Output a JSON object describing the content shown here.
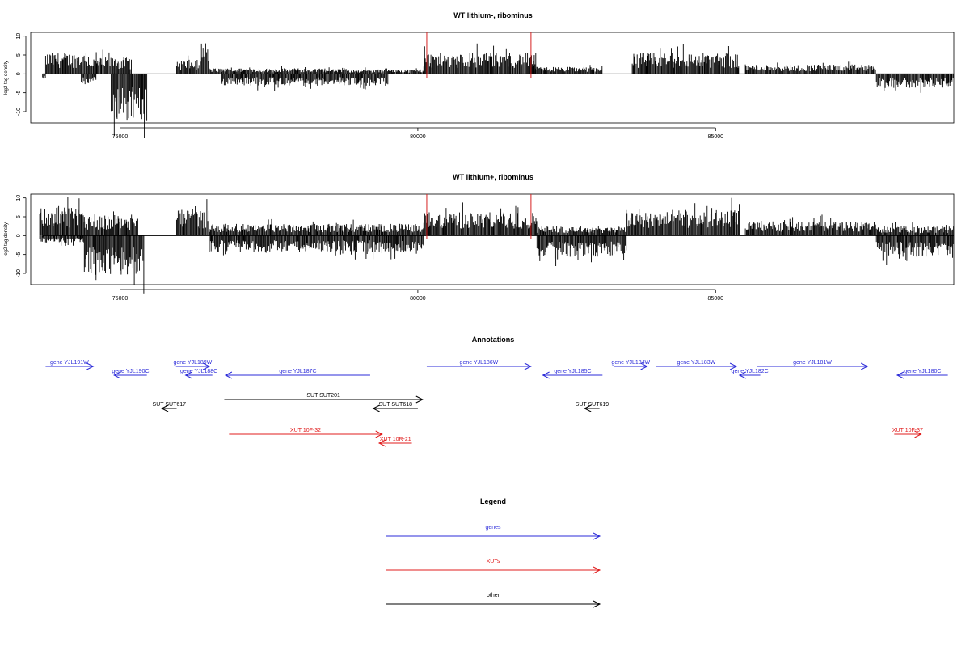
{
  "chart_data": [
    {
      "type": "bar",
      "title": "WT lithium-, ribominus",
      "ylabel": "log2 tag density",
      "xlabel": "",
      "xlim": [
        73500,
        89000
      ],
      "ylim": [
        -13,
        11
      ],
      "x_ticks": [
        75000,
        80000,
        85000
      ],
      "y_ticks": [
        10,
        5,
        0,
        -5,
        -10
      ],
      "grid": false,
      "highlight_positions": [
        80150,
        81900
      ],
      "highlight_color": "#d62020",
      "bar_color": "#000000",
      "regions": [
        {
          "start": 73700,
          "end": 73750,
          "level": -1.0,
          "sign": -1
        },
        {
          "start": 73750,
          "end": 74500,
          "level": 4.5,
          "sign": 1
        },
        {
          "start": 74500,
          "end": 75200,
          "level": 3.5,
          "sign": 1
        },
        {
          "start": 74350,
          "end": 74600,
          "level": -2.0,
          "sign": -1
        },
        {
          "start": 74850,
          "end": 75450,
          "level": -10.0,
          "sign": -1
        },
        {
          "start": 75950,
          "end": 76350,
          "level": 3.0,
          "sign": 1
        },
        {
          "start": 76350,
          "end": 76500,
          "level": 7.0,
          "sign": 1
        },
        {
          "start": 76500,
          "end": 78500,
          "level": 1.2,
          "sign": 1
        },
        {
          "start": 76700,
          "end": 79500,
          "level": -2.5,
          "sign": -1
        },
        {
          "start": 78500,
          "end": 80100,
          "level": 1.0,
          "sign": 1
        },
        {
          "start": 80100,
          "end": 82000,
          "level": 4.5,
          "sign": 1
        },
        {
          "start": 81900,
          "end": 83100,
          "level": 1.5,
          "sign": 1
        },
        {
          "start": 83600,
          "end": 85400,
          "level": 4.5,
          "sign": 1
        },
        {
          "start": 85500,
          "end": 87700,
          "level": 2.0,
          "sign": 1
        },
        {
          "start": 87700,
          "end": 89000,
          "level": -3.0,
          "sign": -1
        }
      ]
    },
    {
      "type": "bar",
      "title": "WT lithium+, ribominus",
      "ylabel": "log2 tag density",
      "xlabel": "",
      "xlim": [
        73500,
        89000
      ],
      "ylim": [
        -13,
        11
      ],
      "x_ticks": [
        75000,
        80000,
        85000
      ],
      "y_ticks": [
        10,
        5,
        0,
        -5,
        -10
      ],
      "grid": false,
      "highlight_positions": [
        80150,
        81900
      ],
      "highlight_color": "#d62020",
      "bar_color": "#000000",
      "regions": [
        {
          "start": 73650,
          "end": 74400,
          "level": 6.0,
          "sign": 1
        },
        {
          "start": 73650,
          "end": 74400,
          "level": -1.5,
          "sign": -1
        },
        {
          "start": 74400,
          "end": 75300,
          "level": 4.5,
          "sign": 1
        },
        {
          "start": 74400,
          "end": 75400,
          "level": -8.5,
          "sign": -1
        },
        {
          "start": 75950,
          "end": 76500,
          "level": 5.5,
          "sign": 1
        },
        {
          "start": 76500,
          "end": 80100,
          "level": 2.5,
          "sign": 1
        },
        {
          "start": 76500,
          "end": 80100,
          "level": -3.5,
          "sign": -1
        },
        {
          "start": 80100,
          "end": 82000,
          "level": 5.0,
          "sign": 1
        },
        {
          "start": 82000,
          "end": 83500,
          "level": 2.0,
          "sign": 1
        },
        {
          "start": 82000,
          "end": 83500,
          "level": -4.5,
          "sign": -1
        },
        {
          "start": 83500,
          "end": 85400,
          "level": 5.5,
          "sign": 1
        },
        {
          "start": 85500,
          "end": 87700,
          "level": 3.0,
          "sign": 1
        },
        {
          "start": 87700,
          "end": 89000,
          "level": 2.0,
          "sign": 1
        },
        {
          "start": 87700,
          "end": 89000,
          "level": -4.5,
          "sign": -1
        }
      ]
    }
  ],
  "annotations": {
    "title": "Annotations",
    "features": [
      {
        "label": "gene YJL191W",
        "start": 73750,
        "end": 74550,
        "strand": "+",
        "color": "#2b2bd9",
        "row": 0
      },
      {
        "label": "gene YJL190C",
        "start": 74900,
        "end": 75450,
        "strand": "-",
        "color": "#2b2bd9",
        "row": 1
      },
      {
        "label": "gene YJL189W",
        "start": 75940,
        "end": 76500,
        "strand": "+",
        "color": "#2b2bd9",
        "row": 0
      },
      {
        "label": "gene YJL188C",
        "start": 76100,
        "end": 76550,
        "strand": "-",
        "color": "#2b2bd9",
        "row": 1
      },
      {
        "label": "gene YJL187C",
        "start": 76770,
        "end": 79200,
        "strand": "-",
        "color": "#2b2bd9",
        "row": 1
      },
      {
        "label": "gene YJL186W",
        "start": 80150,
        "end": 81900,
        "strand": "+",
        "color": "#2b2bd9",
        "row": 0
      },
      {
        "label": "gene YJL185C",
        "start": 82100,
        "end": 83100,
        "strand": "-",
        "color": "#2b2bd9",
        "row": 1
      },
      {
        "label": "gene YJL184W",
        "start": 83300,
        "end": 83850,
        "strand": "+",
        "color": "#2b2bd9",
        "row": 0
      },
      {
        "label": "gene YJL183W",
        "start": 84000,
        "end": 85350,
        "strand": "+",
        "color": "#2b2bd9",
        "row": 0
      },
      {
        "label": "gene YJL182C",
        "start": 85400,
        "end": 85750,
        "strand": "-",
        "color": "#2b2bd9",
        "row": 1
      },
      {
        "label": "gene YJL181W",
        "start": 85700,
        "end": 87550,
        "strand": "+",
        "color": "#2b2bd9",
        "row": 0
      },
      {
        "label": "gene YJL180C",
        "start": 88050,
        "end": 88900,
        "strand": "-",
        "color": "#2b2bd9",
        "row": 1
      },
      {
        "label": "SUT SUT617",
        "start": 75700,
        "end": 75950,
        "strand": "-",
        "color": "#000000",
        "row": 3
      },
      {
        "label": "SUT SUT201",
        "start": 76750,
        "end": 80080,
        "strand": "+",
        "color": "#000000",
        "row": 2
      },
      {
        "label": "SUT SUT618",
        "start": 79250,
        "end": 80000,
        "strand": "-",
        "color": "#000000",
        "row": 3
      },
      {
        "label": "SUT SUT619",
        "start": 82800,
        "end": 83050,
        "strand": "-",
        "color": "#000000",
        "row": 3
      },
      {
        "label": "XUT 10F-32",
        "start": 76830,
        "end": 79400,
        "strand": "+",
        "color": "#e01c1c",
        "row": 4
      },
      {
        "label": "XUT 10R-21",
        "start": 79350,
        "end": 79900,
        "strand": "-",
        "color": "#e01c1c",
        "row": 5
      },
      {
        "label": "XUT 10F-37",
        "start": 88000,
        "end": 88450,
        "strand": "+",
        "color": "#e01c1c",
        "row": 4
      }
    ]
  },
  "legend": {
    "title": "Legend",
    "items": [
      {
        "label": "genes",
        "color": "#2b2bd9"
      },
      {
        "label": "XUTs",
        "color": "#e01c1c"
      },
      {
        "label": "other",
        "color": "#000000"
      }
    ]
  }
}
